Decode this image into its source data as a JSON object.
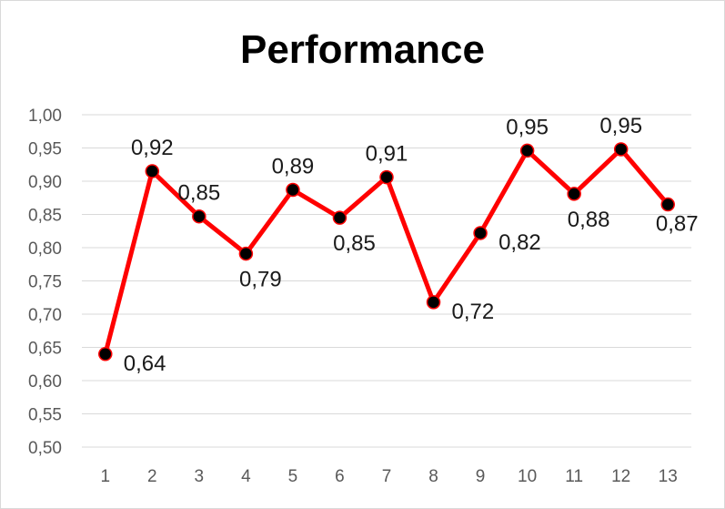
{
  "chart_data": {
    "type": "line",
    "title": "Performance",
    "xlabel": "",
    "ylabel": "",
    "x": [
      1,
      2,
      3,
      4,
      5,
      6,
      7,
      8,
      9,
      10,
      11,
      12,
      13
    ],
    "series": [
      {
        "values": [
          0.64,
          0.915,
          0.847,
          0.791,
          0.887,
          0.845,
          0.906,
          0.718,
          0.822,
          0.946,
          0.881,
          0.948,
          0.865
        ],
        "labels": [
          "0,64",
          "0,92",
          "0,85",
          "0,79",
          "0,89",
          "0,85",
          "0,91",
          "0,72",
          "0,82",
          "0,95",
          "0,88",
          "0,95",
          "0,87"
        ],
        "label_side": [
          "right",
          "above",
          "above",
          "below",
          "above",
          "below",
          "above",
          "right",
          "right",
          "above",
          "below",
          "above",
          "below"
        ]
      }
    ],
    "ylim": [
      0.5,
      1.0
    ],
    "yticks": [
      "0,50",
      "0,55",
      "0,60",
      "0,65",
      "0,70",
      "0,75",
      "0,80",
      "0,85",
      "0,90",
      "0,95",
      "1,00"
    ],
    "xticks": [
      "1",
      "2",
      "3",
      "4",
      "5",
      "6",
      "7",
      "8",
      "9",
      "10",
      "11",
      "12",
      "13"
    ],
    "grid": true,
    "legend": "none",
    "colors": {
      "line": "#ff0000",
      "marker": "#000000",
      "grid": "#d9d9d9",
      "tick_text": "#595959"
    }
  }
}
